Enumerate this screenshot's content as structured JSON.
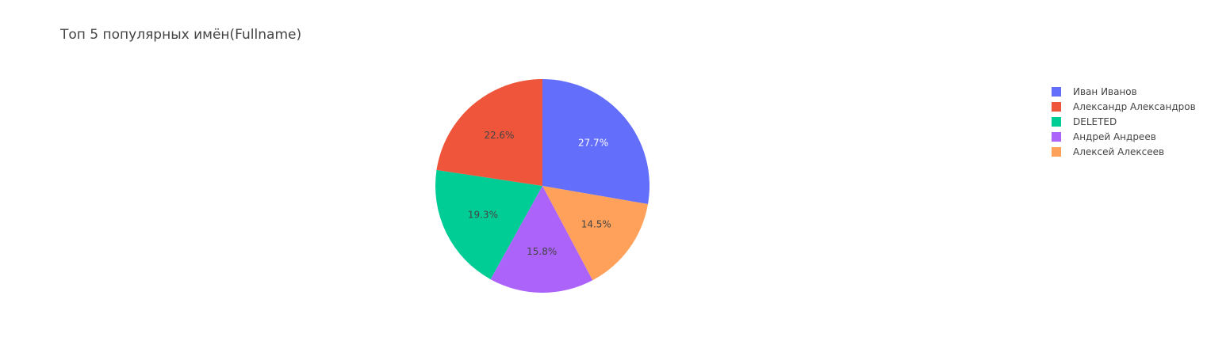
{
  "chart_data": {
    "type": "pie",
    "title": "Топ 5 популярных имён(Fullname)",
    "legend_position": "top-right",
    "slices": [
      {
        "label": "Иван Иванов",
        "percent": 27.7,
        "percent_label": "27.7%",
        "color": "#636efa",
        "text_color": "#ffffff"
      },
      {
        "label": "Алексей Алексеев",
        "percent": 14.5,
        "percent_label": "14.5%",
        "color": "#ffa15a",
        "text_color": "#444444"
      },
      {
        "label": "Андрей Андреев",
        "percent": 15.8,
        "percent_label": "15.8%",
        "color": "#ab63fa",
        "text_color": "#444444"
      },
      {
        "label": "DELETED",
        "percent": 19.3,
        "percent_label": "19.3%",
        "color": "#00cc96",
        "text_color": "#444444"
      },
      {
        "label": "Александр Александров",
        "percent": 22.6,
        "percent_label": "22.6%",
        "color": "#ef553b",
        "text_color": "#444444"
      }
    ],
    "legend": [
      {
        "label": "Иван Иванов",
        "color": "#636efa"
      },
      {
        "label": "Александр Александров",
        "color": "#ef553b"
      },
      {
        "label": "DELETED",
        "color": "#00cc96"
      },
      {
        "label": "Андрей Андреев",
        "color": "#ab63fa"
      },
      {
        "label": "Алексей Алексеев",
        "color": "#ffa15a"
      }
    ]
  }
}
